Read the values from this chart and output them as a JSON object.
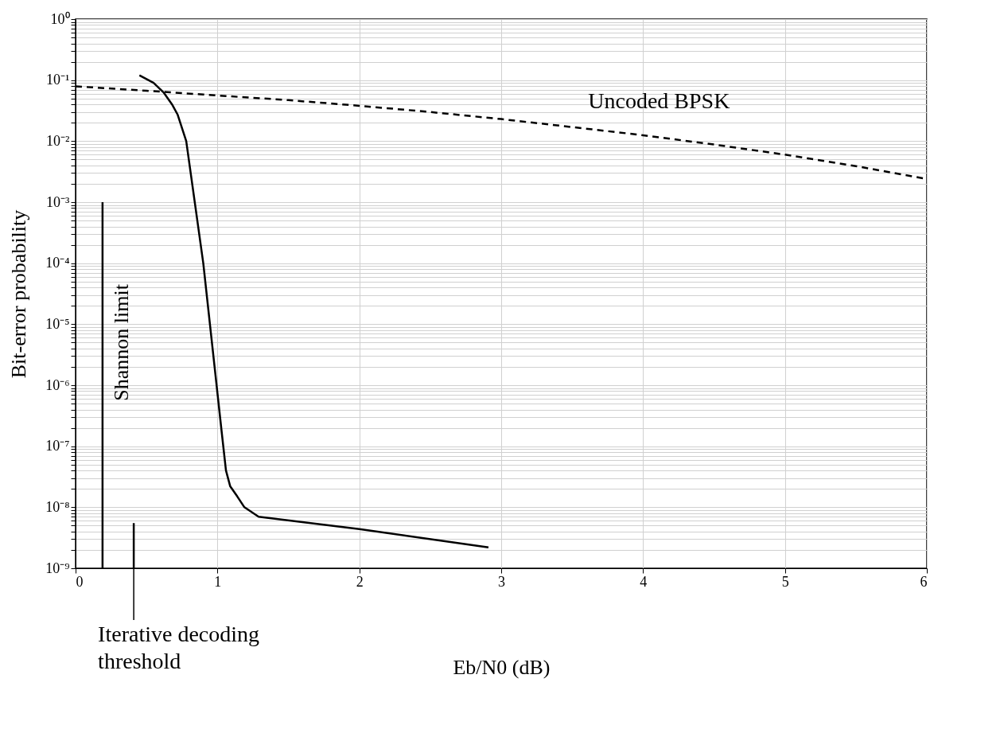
{
  "chart_data": {
    "type": "line",
    "xlabel": "Eb/N0 (dB)",
    "ylabel": "Bit-error probability",
    "log": "y",
    "grid": true,
    "xlim": [
      0,
      6
    ],
    "xticks": [
      0,
      1,
      2,
      3,
      4,
      5,
      6
    ],
    "ylim": [
      1e-09,
      1
    ],
    "yticks": [
      {
        "value": 1e-09,
        "label": "10⁻⁹"
      },
      {
        "value": 2e-09,
        "label": null
      },
      {
        "value": 3e-09,
        "label": null
      },
      {
        "value": 4e-09,
        "label": null
      },
      {
        "value": 5e-09,
        "label": null
      },
      {
        "value": 6e-09,
        "label": null
      },
      {
        "value": 7e-09,
        "label": null
      },
      {
        "value": 8e-09,
        "label": null
      },
      {
        "value": 9e-09,
        "label": null
      },
      {
        "value": 1e-08,
        "label": "10⁻⁸"
      },
      {
        "value": 2e-08,
        "label": null
      },
      {
        "value": 3e-08,
        "label": null
      },
      {
        "value": 4e-08,
        "label": null
      },
      {
        "value": 5e-08,
        "label": null
      },
      {
        "value": 6e-08,
        "label": null
      },
      {
        "value": 7e-08,
        "label": null
      },
      {
        "value": 8e-08,
        "label": null
      },
      {
        "value": 9e-08,
        "label": null
      },
      {
        "value": 1e-07,
        "label": "10⁻⁷"
      },
      {
        "value": 2e-07,
        "label": null
      },
      {
        "value": 3e-07,
        "label": null
      },
      {
        "value": 4e-07,
        "label": null
      },
      {
        "value": 5e-07,
        "label": null
      },
      {
        "value": 6e-07,
        "label": null
      },
      {
        "value": 7e-07,
        "label": null
      },
      {
        "value": 8e-07,
        "label": null
      },
      {
        "value": 9e-07,
        "label": null
      },
      {
        "value": 1e-06,
        "label": "10⁻⁶"
      },
      {
        "value": 2e-06,
        "label": null
      },
      {
        "value": 3e-06,
        "label": null
      },
      {
        "value": 4e-06,
        "label": null
      },
      {
        "value": 5e-06,
        "label": null
      },
      {
        "value": 6e-06,
        "label": null
      },
      {
        "value": 7e-06,
        "label": null
      },
      {
        "value": 8e-06,
        "label": null
      },
      {
        "value": 9e-06,
        "label": null
      },
      {
        "value": 1e-05,
        "label": "10⁻⁵"
      },
      {
        "value": 2e-05,
        "label": null
      },
      {
        "value": 3e-05,
        "label": null
      },
      {
        "value": 4e-05,
        "label": null
      },
      {
        "value": 5e-05,
        "label": null
      },
      {
        "value": 6e-05,
        "label": null
      },
      {
        "value": 7e-05,
        "label": null
      },
      {
        "value": 8e-05,
        "label": null
      },
      {
        "value": 9e-05,
        "label": null
      },
      {
        "value": 0.0001,
        "label": "10⁻⁴"
      },
      {
        "value": 0.0002,
        "label": null
      },
      {
        "value": 0.0003,
        "label": null
      },
      {
        "value": 0.0004,
        "label": null
      },
      {
        "value": 0.0005,
        "label": null
      },
      {
        "value": 0.0006,
        "label": null
      },
      {
        "value": 0.0007,
        "label": null
      },
      {
        "value": 0.0008,
        "label": null
      },
      {
        "value": 0.0009,
        "label": null
      },
      {
        "value": 0.001,
        "label": "10⁻³"
      },
      {
        "value": 0.002,
        "label": null
      },
      {
        "value": 0.003,
        "label": null
      },
      {
        "value": 0.004,
        "label": null
      },
      {
        "value": 0.005,
        "label": null
      },
      {
        "value": 0.006,
        "label": null
      },
      {
        "value": 0.007,
        "label": null
      },
      {
        "value": 0.008,
        "label": null
      },
      {
        "value": 0.009,
        "label": null
      },
      {
        "value": 0.01,
        "label": "10⁻²"
      },
      {
        "value": 0.02,
        "label": null
      },
      {
        "value": 0.03,
        "label": null
      },
      {
        "value": 0.04,
        "label": null
      },
      {
        "value": 0.05,
        "label": null
      },
      {
        "value": 0.06,
        "label": null
      },
      {
        "value": 0.07,
        "label": null
      },
      {
        "value": 0.08,
        "label": null
      },
      {
        "value": 0.09,
        "label": null
      },
      {
        "value": 0.1,
        "label": "10⁻¹"
      },
      {
        "value": 0.2,
        "label": null
      },
      {
        "value": 0.3,
        "label": null
      },
      {
        "value": 0.4,
        "label": null
      },
      {
        "value": 0.5,
        "label": null
      },
      {
        "value": 0.6,
        "label": null
      },
      {
        "value": 0.7,
        "label": null
      },
      {
        "value": 0.8,
        "label": null
      },
      {
        "value": 0.9,
        "label": null
      },
      {
        "value": 1,
        "label": "10⁰"
      }
    ],
    "series": [
      {
        "name": "Uncoded BPSK",
        "color": "#000000",
        "line_style": "dashed",
        "x": [
          0,
          0.5,
          1,
          1.5,
          2,
          2.5,
          3,
          3.5,
          4,
          4.5,
          5,
          5.5,
          6
        ],
        "values": [
          0.079,
          0.067,
          0.056,
          0.047,
          0.038,
          0.03,
          0.023,
          0.017,
          0.0125,
          0.0088,
          0.006,
          0.0039,
          0.0024
        ]
      },
      {
        "color": "#000000",
        "line_style": "solid",
        "x": [
          0.45,
          0.55,
          0.62,
          0.68,
          0.72,
          0.78,
          0.9,
          1.03,
          1.06,
          1.09,
          1.14,
          1.19,
          1.29,
          2.0,
          2.91
        ],
        "values": [
          0.12,
          0.09,
          0.063,
          0.04,
          0.027,
          0.01,
          0.0001,
          1.7e-07,
          4e-08,
          2.2e-08,
          1.5e-08,
          1e-08,
          7e-09,
          4.4e-09,
          2.2e-09
        ]
      },
      {
        "color": "#000000",
        "line_style": "solid",
        "x": [
          0.19,
          0.19
        ],
        "values": [
          1e-09,
          0.001
        ]
      },
      {
        "color": "#000000",
        "line_style": "solid",
        "x": [
          0.41,
          0.41
        ],
        "values": [
          1e-09,
          5.5e-09
        ]
      }
    ],
    "annotations": [
      {
        "text": "Shannon limit",
        "x": 0.19,
        "y": 5e-06
      },
      {
        "text": "Iterative decoding\nthreshold",
        "x": 0.41,
        "y": 1e-09
      }
    ]
  }
}
